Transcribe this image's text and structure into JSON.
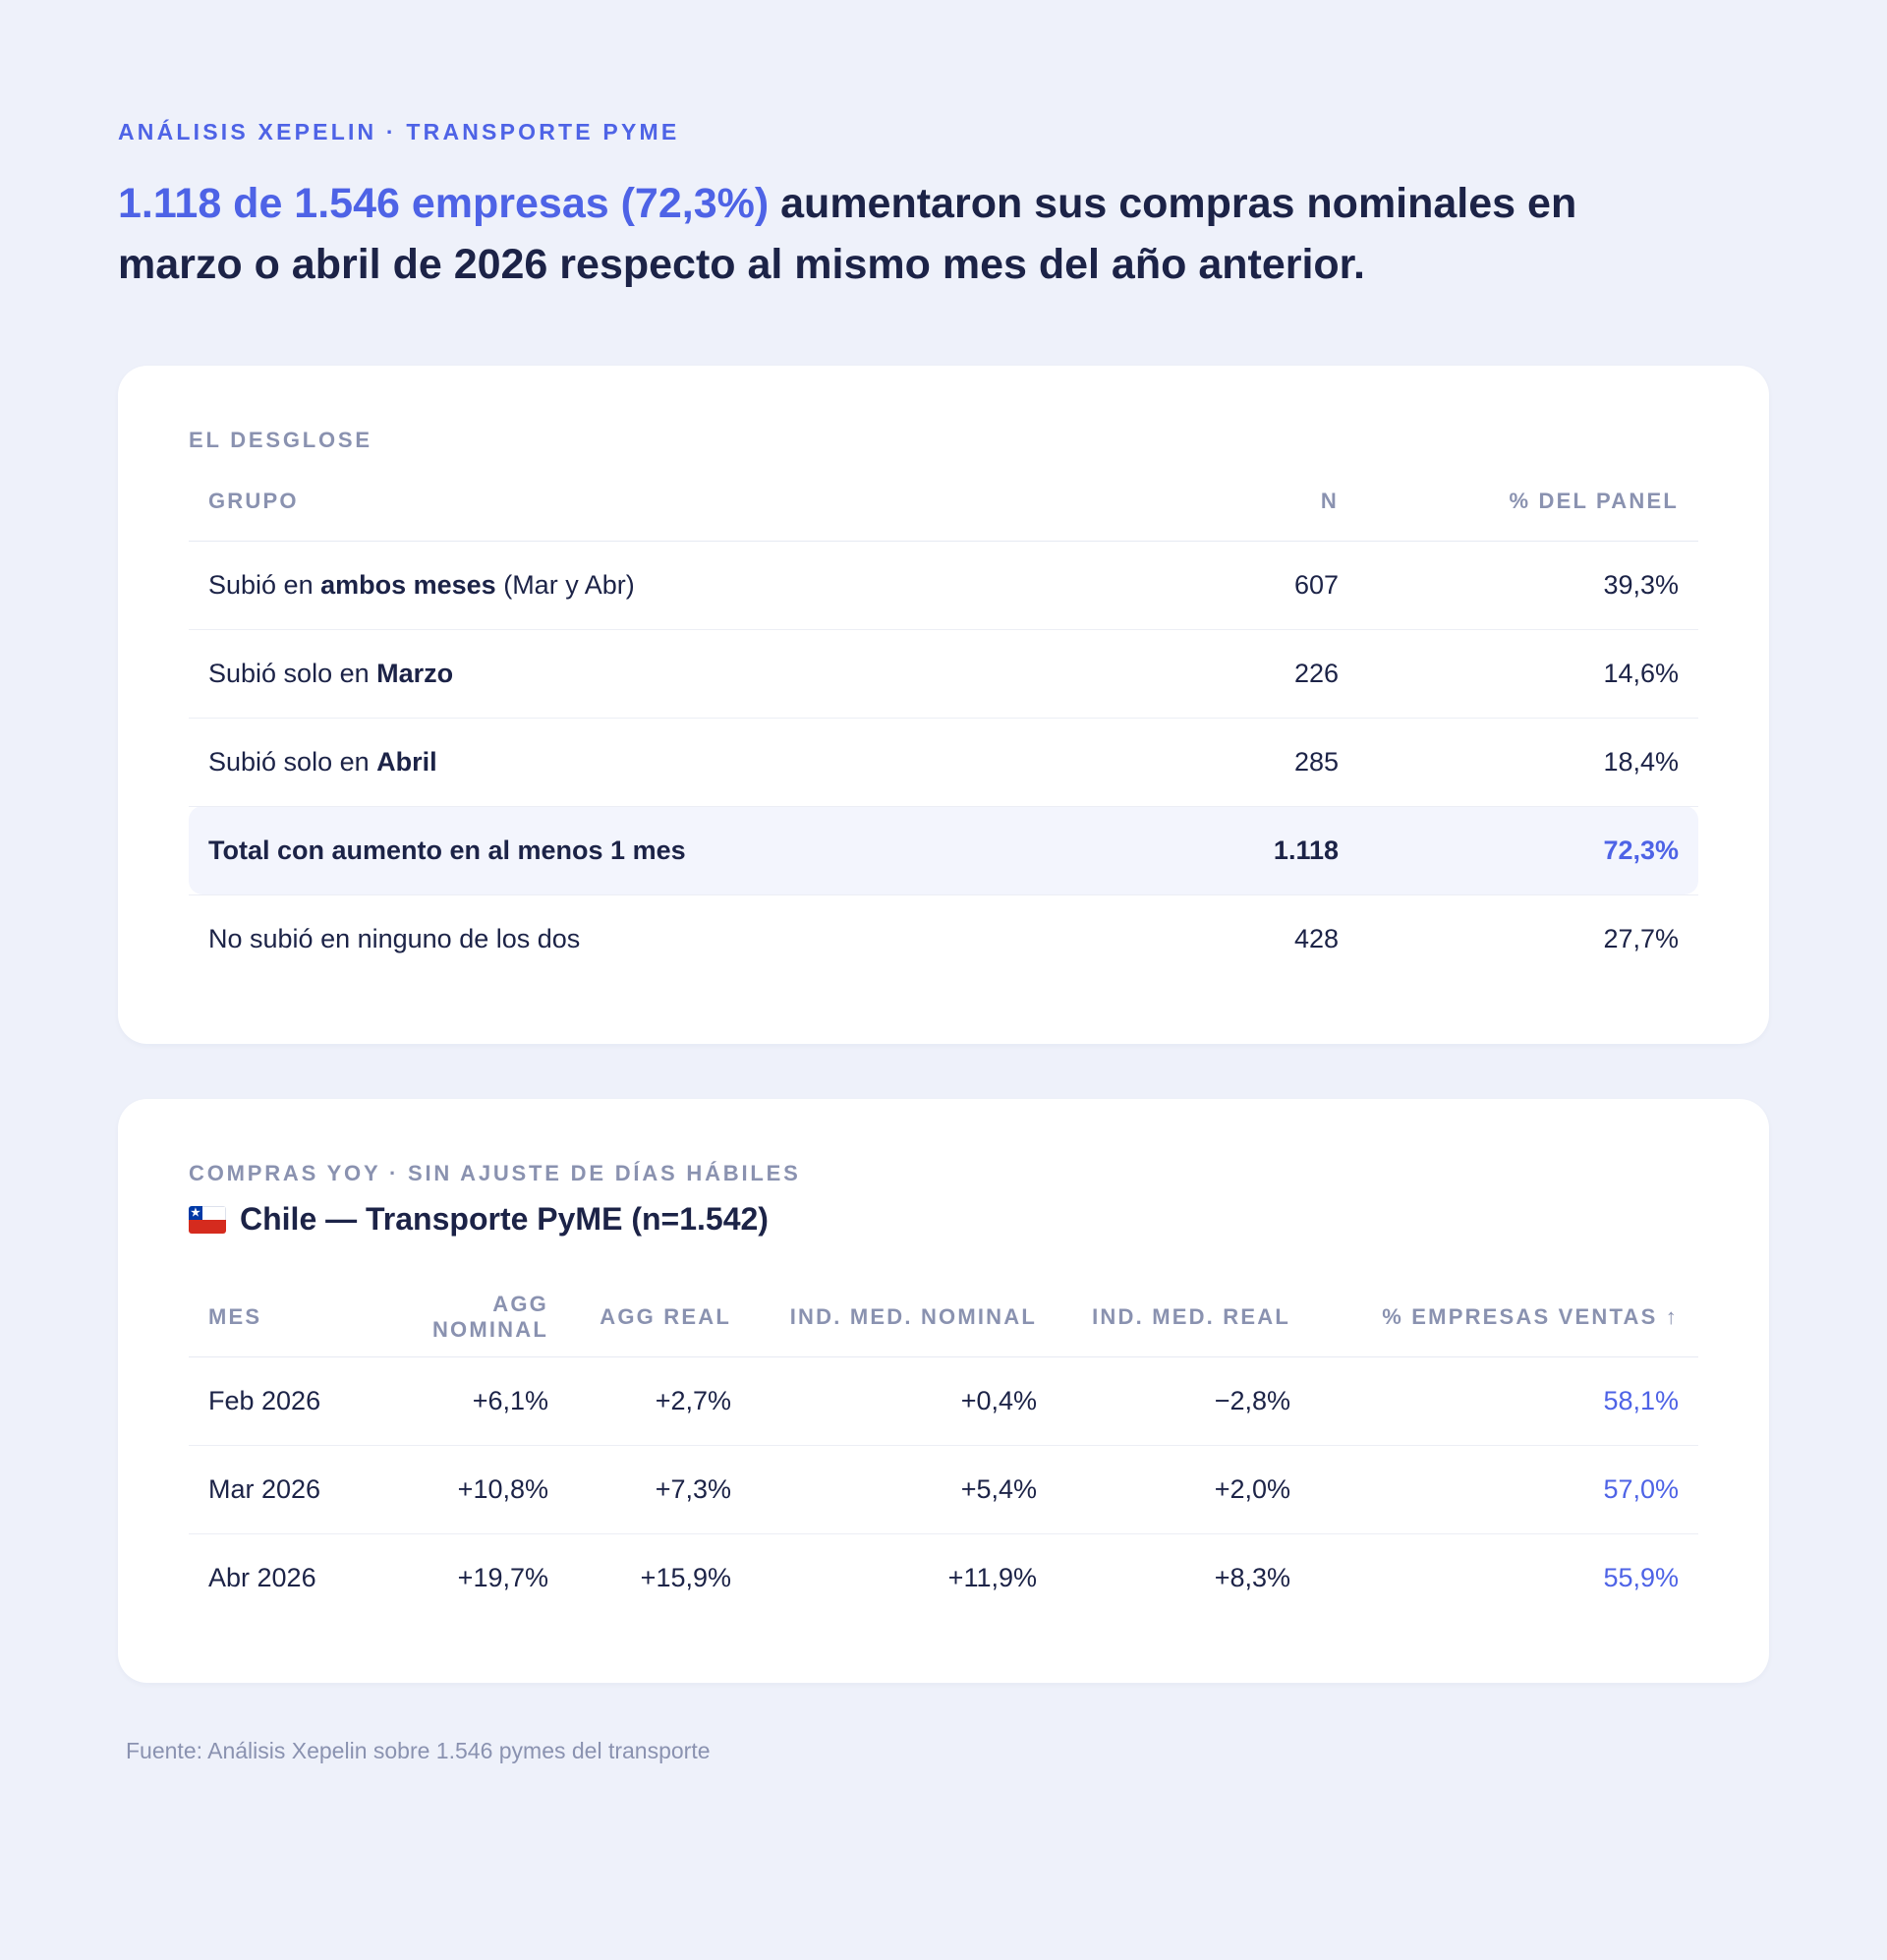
{
  "eyebrow": "ANÁLISIS XEPELIN · TRANSPORTE PYME",
  "headline": {
    "accent": "1.118 de 1.546 empresas (72,3%)",
    "rest": " aumentaron sus compras nominales en marzo o abril de 2026 respecto al mismo mes del año anterior."
  },
  "breakdown": {
    "label": "EL DESGLOSE",
    "columns": [
      "GRUPO",
      "N",
      "% DEL PANEL"
    ],
    "rows": [
      {
        "pre": "Subió en ",
        "bold": "ambos meses",
        "post": " (Mar y Abr)",
        "n": "607",
        "pct": "39,3%"
      },
      {
        "pre": "Subió solo en ",
        "bold": "Marzo",
        "post": "",
        "n": "226",
        "pct": "14,6%"
      },
      {
        "pre": "Subió solo en ",
        "bold": "Abril",
        "post": "",
        "n": "285",
        "pct": "18,4%"
      },
      {
        "pre": "",
        "bold": "Total con aumento en al menos 1 mes",
        "post": "",
        "n": "1.118",
        "pct": "72,3%"
      },
      {
        "pre": "No subió en ninguno de los dos",
        "bold": "",
        "post": "",
        "n": "428",
        "pct": "27,7%"
      }
    ]
  },
  "yoy": {
    "label": "COMPRAS YOY · SIN AJUSTE DE DÍAS HÁBILES",
    "title": "Chile — Transporte PyME (n=1.542)",
    "flag_icon": "chile-flag-icon",
    "columns": [
      "MES",
      "AGG NOMINAL",
      "AGG REAL",
      "IND. MED. NOMINAL",
      "IND. MED. REAL",
      "% EMPRESAS VENTAS ↑"
    ],
    "rows": [
      [
        "Feb 2026",
        "+6,1%",
        "+2,7%",
        "+0,4%",
        "−2,8%",
        "58,1%"
      ],
      [
        "Mar 2026",
        "+10,8%",
        "+7,3%",
        "+5,4%",
        "+2,0%",
        "57,0%"
      ],
      [
        "Abr 2026",
        "+19,7%",
        "+15,9%",
        "+11,9%",
        "+8,3%",
        "55,9%"
      ]
    ]
  },
  "footer": "Fuente: Análisis Xepelin sobre 1.546 pymes del transporte",
  "colors": {
    "accent": "#4e63e6",
    "background": "#eef1fa",
    "text": "#1c2347",
    "muted": "#8a92b0"
  }
}
